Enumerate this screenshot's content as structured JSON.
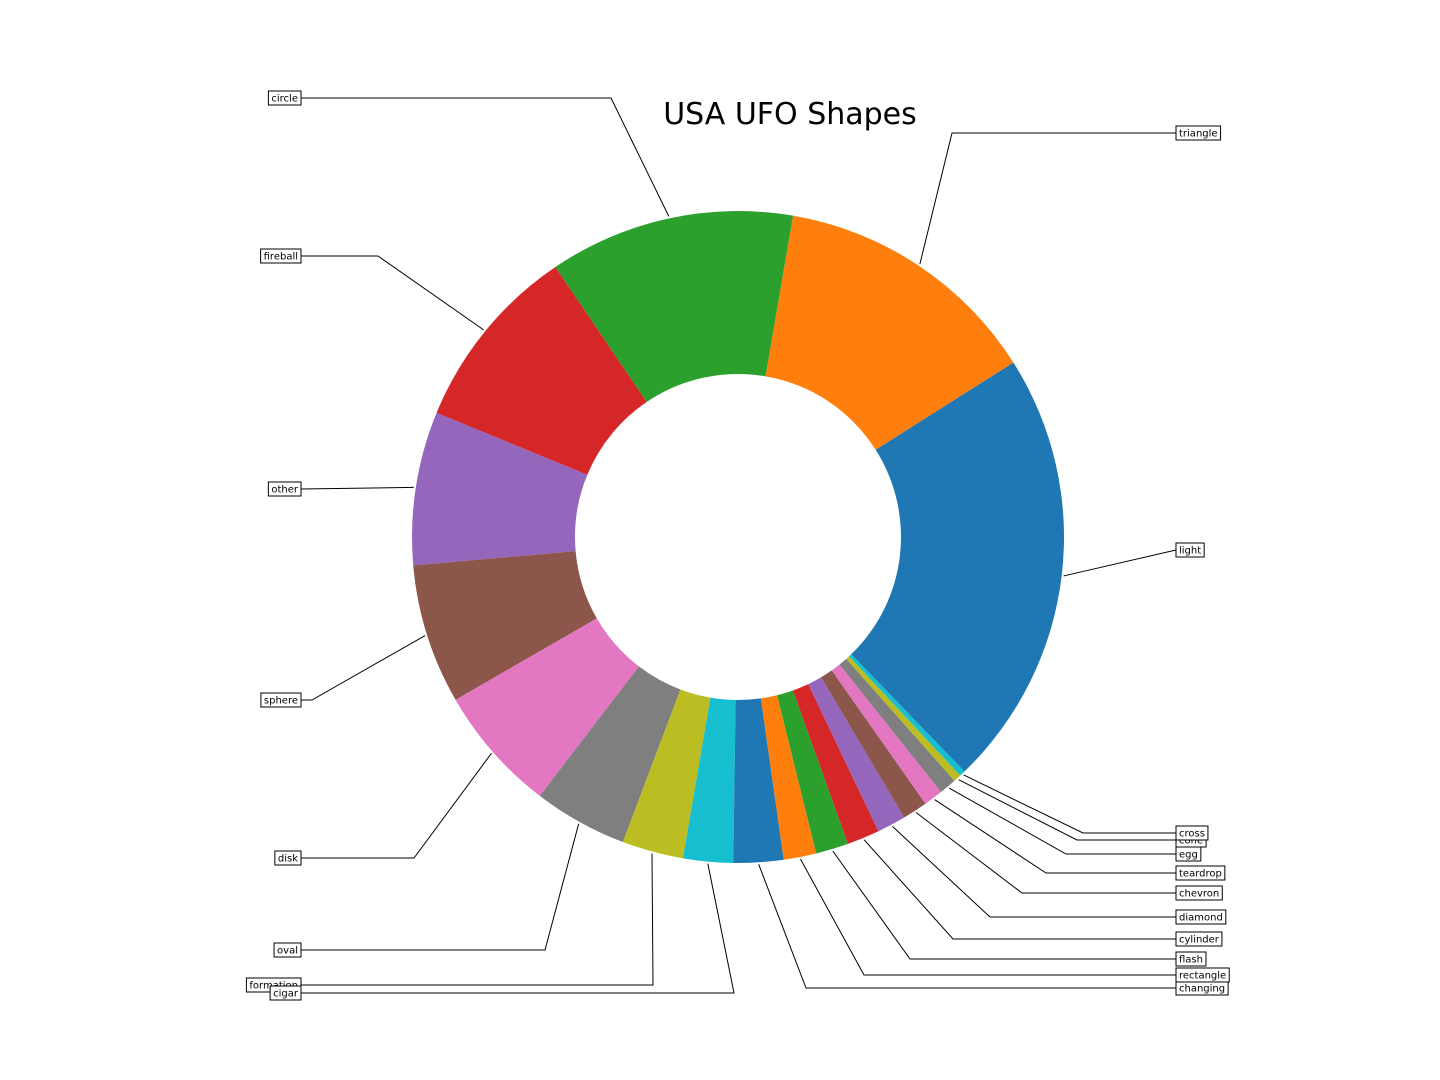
{
  "chart_data": {
    "type": "pie",
    "title": "USA UFO Shapes",
    "donut": true,
    "slices": [
      {
        "label": "light",
        "value": 22.9,
        "color": "#1f77b4"
      },
      {
        "label": "triangle",
        "value": 14.0,
        "color": "#ff7f0e"
      },
      {
        "label": "circle",
        "value": 12.8,
        "color": "#2ca02c"
      },
      {
        "label": "fireball",
        "value": 9.8,
        "color": "#d62728"
      },
      {
        "label": "other",
        "value": 8.0,
        "color": "#9467bd"
      },
      {
        "label": "sphere",
        "value": 7.3,
        "color": "#8c564b"
      },
      {
        "label": "disk",
        "value": 6.6,
        "color": "#e377c2"
      },
      {
        "label": "oval",
        "value": 4.9,
        "color": "#7f7f7f"
      },
      {
        "label": "formation",
        "value": 3.2,
        "color": "#bcbd22"
      },
      {
        "label": "cigar",
        "value": 2.6,
        "color": "#17becf"
      },
      {
        "label": "changing",
        "value": 2.6,
        "color": "#1f77b4"
      },
      {
        "label": "rectangle",
        "value": 1.7,
        "color": "#ff7f0e"
      },
      {
        "label": "flash",
        "value": 1.7,
        "color": "#2ca02c"
      },
      {
        "label": "cylinder",
        "value": 1.7,
        "color": "#d62728"
      },
      {
        "label": "diamond",
        "value": 1.5,
        "color": "#9467bd"
      },
      {
        "label": "chevron",
        "value": 1.3,
        "color": "#8c564b"
      },
      {
        "label": "teardrop",
        "value": 1.0,
        "color": "#e377c2"
      },
      {
        "label": "egg",
        "value": 0.9,
        "color": "#7f7f7f"
      },
      {
        "label": "cone",
        "value": 0.4,
        "color": "#bcbd22"
      },
      {
        "label": "cross",
        "value": 0.3,
        "color": "#17becf"
      }
    ]
  }
}
